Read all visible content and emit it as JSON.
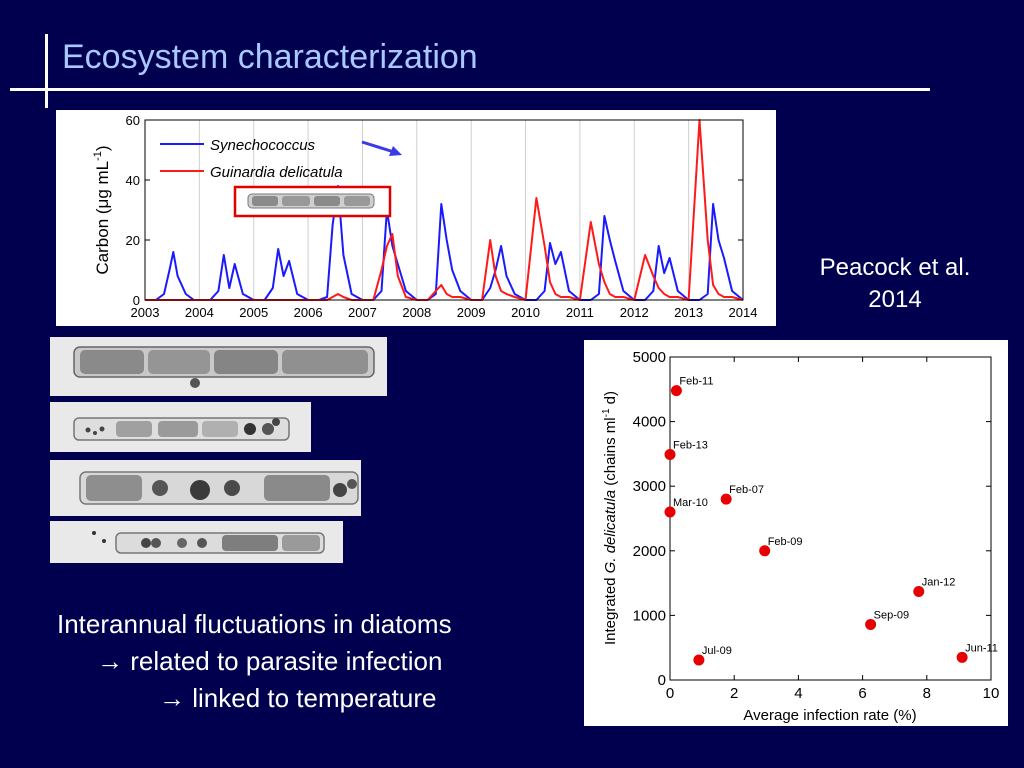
{
  "slide": {
    "title": "Ecosystem characterization",
    "citation_line1": "Peacock et al.",
    "citation_line2": "2014",
    "bullets": [
      {
        "arrow": "",
        "text": "Interannual fluctuations in diatoms"
      },
      {
        "arrow": "→",
        "text": "related to parasite infection"
      },
      {
        "arrow": "→",
        "text": "linked to temperature"
      }
    ]
  },
  "colors": {
    "background": "#00004f",
    "title": "#a8c8ff",
    "synechococcus": "#1a1aff",
    "guinardia": "#ff1a1a",
    "scatter_point": "#e80000"
  },
  "micrographs": [
    {
      "name": "micrograph-1"
    },
    {
      "name": "micrograph-2"
    },
    {
      "name": "micrograph-3"
    },
    {
      "name": "micrograph-4"
    }
  ],
  "chart_data": [
    {
      "type": "line",
      "title": "",
      "ylabel_prefix": "Carbon (",
      "ylabel_mu": "μ",
      "ylabel_unit": "g mL",
      "ylabel_exp": "-1",
      "ylabel_suffix": ")",
      "xlabel": "",
      "ylim": [
        0,
        60
      ],
      "xlim": [
        2003,
        2014
      ],
      "yticks": [
        0,
        20,
        40,
        60
      ],
      "xticks": [
        "2003",
        "2004",
        "2005",
        "2006",
        "2007",
        "2008",
        "2009",
        "2010",
        "2011",
        "2012",
        "2013",
        "2014"
      ],
      "legend_position": "top-left",
      "series": [
        {
          "name": "Synechococcus",
          "color": "#1a1aff",
          "x": [
            2003.0,
            2003.2,
            2003.35,
            2003.45,
            2003.52,
            2003.6,
            2003.75,
            2003.9,
            2004.0,
            2004.2,
            2004.35,
            2004.45,
            2004.55,
            2004.65,
            2004.8,
            2005.0,
            2005.2,
            2005.35,
            2005.45,
            2005.55,
            2005.65,
            2005.8,
            2006.0,
            2006.2,
            2006.35,
            2006.45,
            2006.55,
            2006.65,
            2006.8,
            2007.0,
            2007.2,
            2007.35,
            2007.45,
            2007.55,
            2007.65,
            2007.8,
            2008.0,
            2008.2,
            2008.35,
            2008.45,
            2008.55,
            2008.65,
            2008.8,
            2009.0,
            2009.2,
            2009.35,
            2009.45,
            2009.55,
            2009.65,
            2009.8,
            2010.0,
            2010.2,
            2010.35,
            2010.45,
            2010.55,
            2010.65,
            2010.8,
            2011.0,
            2011.2,
            2011.35,
            2011.45,
            2011.55,
            2011.65,
            2011.8,
            2012.0,
            2012.2,
            2012.35,
            2012.45,
            2012.55,
            2012.65,
            2012.8,
            2013.0,
            2013.2,
            2013.35,
            2013.45,
            2013.55,
            2013.65,
            2013.8,
            2014.0
          ],
          "y": [
            0,
            0,
            2,
            10,
            16,
            8,
            2,
            0,
            0,
            0,
            3,
            15,
            4,
            12,
            2,
            0,
            0,
            4,
            17,
            8,
            13,
            2,
            0,
            0,
            1,
            25,
            38,
            15,
            2,
            0,
            0,
            3,
            30,
            18,
            12,
            3,
            0,
            0,
            2,
            32,
            20,
            10,
            3,
            0,
            0,
            4,
            10,
            18,
            8,
            2,
            0,
            0,
            3,
            19,
            12,
            16,
            3,
            0,
            0,
            2,
            28,
            20,
            13,
            3,
            0,
            0,
            3,
            18,
            9,
            14,
            3,
            0,
            0,
            2,
            32,
            20,
            14,
            3,
            0
          ]
        },
        {
          "name": "Guinardia delicatula",
          "color": "#ff1a1a",
          "x": [
            2003.0,
            2003.2,
            2003.35,
            2003.45,
            2003.52,
            2003.6,
            2003.75,
            2003.9,
            2004.0,
            2004.2,
            2004.35,
            2004.45,
            2004.55,
            2004.65,
            2004.8,
            2005.0,
            2005.2,
            2005.35,
            2005.45,
            2005.55,
            2005.65,
            2005.8,
            2006.0,
            2006.2,
            2006.35,
            2006.45,
            2006.55,
            2006.65,
            2006.8,
            2007.0,
            2007.2,
            2007.35,
            2007.45,
            2007.55,
            2007.65,
            2007.8,
            2008.0,
            2008.2,
            2008.35,
            2008.45,
            2008.55,
            2008.65,
            2008.8,
            2009.0,
            2009.2,
            2009.35,
            2009.45,
            2009.55,
            2009.65,
            2009.8,
            2010.0,
            2010.2,
            2010.35,
            2010.45,
            2010.55,
            2010.65,
            2010.8,
            2011.0,
            2011.2,
            2011.35,
            2011.45,
            2011.55,
            2011.65,
            2011.8,
            2012.0,
            2012.2,
            2012.35,
            2012.45,
            2012.55,
            2012.65,
            2012.8,
            2013.0,
            2013.2,
            2013.35,
            2013.45,
            2013.55,
            2013.65,
            2013.8,
            2014.0
          ],
          "y": [
            0,
            0,
            0,
            0,
            0,
            0,
            0,
            0,
            0,
            0,
            0,
            0,
            0,
            0,
            0,
            0,
            0,
            0,
            0,
            0,
            0,
            0,
            0,
            0,
            0,
            1,
            2,
            1,
            0,
            0,
            0,
            10,
            18,
            22,
            8,
            1,
            0,
            0,
            3,
            5,
            2,
            1,
            1,
            0,
            0,
            20,
            8,
            3,
            2,
            1,
            0,
            34,
            18,
            6,
            2,
            1,
            1,
            0,
            26,
            12,
            6,
            2,
            1,
            1,
            0,
            15,
            8,
            4,
            2,
            1,
            1,
            0,
            60,
            20,
            5,
            2,
            1,
            1,
            0
          ]
        }
      ]
    },
    {
      "type": "scatter",
      "title": "",
      "xlabel": "Average infection rate (%)",
      "ylabel_prefix": "Integrated ",
      "ylabel_italic": "G. delicatula",
      "ylabel_unit": " (chains ml",
      "ylabel_exp": "-1",
      "ylabel_suffix": " d)",
      "xlim": [
        0,
        10
      ],
      "ylim": [
        0,
        5000
      ],
      "xticks": [
        0,
        2,
        4,
        6,
        8,
        10
      ],
      "yticks": [
        0,
        1000,
        2000,
        3000,
        4000,
        5000
      ],
      "points": [
        {
          "label": "Feb-11",
          "x": 0.2,
          "y": 4480
        },
        {
          "label": "Feb-13",
          "x": 0.0,
          "y": 3490
        },
        {
          "label": "Feb-07",
          "x": 1.75,
          "y": 2800
        },
        {
          "label": "Mar-10",
          "x": 0.0,
          "y": 2600
        },
        {
          "label": "Feb-09",
          "x": 2.95,
          "y": 2000
        },
        {
          "label": "Jan-12",
          "x": 7.75,
          "y": 1370
        },
        {
          "label": "Sep-09",
          "x": 6.25,
          "y": 860
        },
        {
          "label": "Jun-11",
          "x": 9.1,
          "y": 350
        },
        {
          "label": "Jul-09",
          "x": 0.9,
          "y": 310
        }
      ]
    }
  ]
}
